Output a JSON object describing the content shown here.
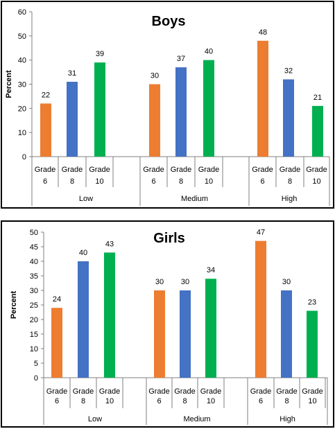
{
  "chart_data": [
    {
      "type": "bar",
      "title": "Boys",
      "ylabel": "Percent",
      "ylim": [
        0,
        60
      ],
      "yticks": [
        0,
        10,
        20,
        30,
        40,
        50,
        60
      ],
      "groups": [
        "Low",
        "Medium",
        "High"
      ],
      "categories": [
        "Grade 6",
        "Grade 8",
        "Grade 10"
      ],
      "category_lines": [
        [
          "Grade",
          "6"
        ],
        [
          "Grade",
          "8"
        ],
        [
          "Grade",
          "10"
        ]
      ],
      "series": [
        {
          "color": "#ED7D31",
          "values": [
            22,
            30,
            48
          ]
        },
        {
          "color": "#4472C4",
          "values": [
            31,
            37,
            32
          ]
        },
        {
          "color": "#00B050",
          "values": [
            39,
            40,
            21
          ]
        }
      ],
      "grid": false,
      "data_labels": true
    },
    {
      "type": "bar",
      "title": "Girls",
      "ylabel": "Percent",
      "ylim": [
        0,
        50
      ],
      "yticks": [
        0,
        5,
        10,
        15,
        20,
        25,
        30,
        35,
        40,
        45,
        50
      ],
      "groups": [
        "Low",
        "Medium",
        "High"
      ],
      "categories": [
        "Grade 6",
        "Grade 8",
        "Grade 10"
      ],
      "category_lines": [
        [
          "Grade",
          "6"
        ],
        [
          "Grade",
          "8"
        ],
        [
          "Grade",
          "10"
        ]
      ],
      "series": [
        {
          "color": "#ED7D31",
          "values": [
            24,
            30,
            47
          ]
        },
        {
          "color": "#4472C4",
          "values": [
            40,
            30,
            30
          ]
        },
        {
          "color": "#00B050",
          "values": [
            43,
            34,
            23
          ]
        }
      ],
      "grid": false,
      "data_labels": true
    }
  ]
}
